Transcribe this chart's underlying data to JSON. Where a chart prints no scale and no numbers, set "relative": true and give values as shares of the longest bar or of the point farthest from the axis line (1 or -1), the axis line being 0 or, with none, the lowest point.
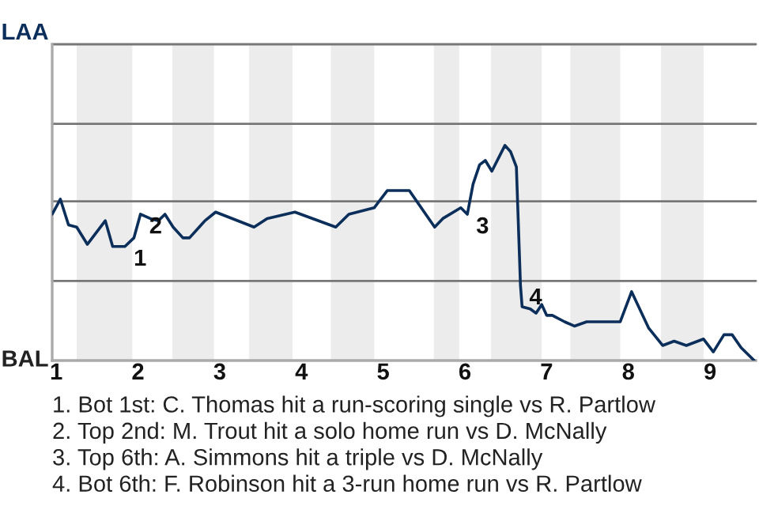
{
  "chart_data": {
    "type": "line",
    "relative": true,
    "x": [
      0.95,
      1.05,
      1.15,
      1.25,
      1.38,
      1.6,
      1.69,
      1.84,
      1.95,
      2.03,
      2.15,
      2.25,
      2.33,
      2.43,
      2.55,
      2.63,
      2.82,
      2.95,
      3.42,
      3.58,
      3.92,
      4.42,
      4.58,
      4.89,
      5.05,
      5.32,
      5.63,
      5.73,
      5.95,
      6.03,
      6.1,
      6.18,
      6.25,
      6.33,
      6.49,
      6.56,
      6.63,
      6.68,
      6.7,
      6.8,
      6.87,
      6.94,
      7.0,
      7.07,
      7.22,
      7.34,
      7.49,
      7.63,
      7.76,
      7.9,
      8.04,
      8.25,
      8.42,
      8.56,
      8.71,
      8.92,
      9.04,
      9.17,
      9.27,
      9.38,
      9.54
    ],
    "series": [
      {
        "color": "#0b2e5a",
        "values": [
          0.68,
          0.75,
          0.63,
          0.62,
          0.54,
          0.65,
          0.53,
          0.53,
          0.57,
          0.68,
          0.66,
          0.65,
          0.68,
          0.62,
          0.57,
          0.57,
          0.65,
          0.69,
          0.62,
          0.66,
          0.69,
          0.62,
          0.68,
          0.71,
          0.79,
          0.79,
          0.62,
          0.66,
          0.71,
          0.68,
          0.82,
          0.91,
          0.93,
          0.88,
          1,
          0.97,
          0.9,
          0.35,
          0.25,
          0.24,
          0.22,
          0.26,
          0.21,
          0.21,
          0.18,
          0.16,
          0.18,
          0.18,
          0.18,
          0.18,
          0.32,
          0.15,
          0.07,
          0.09,
          0.07,
          0.1,
          0.04,
          0.12,
          0.12,
          0.06,
          0
        ]
      }
    ],
    "xlim": [
      0.95,
      9.56
    ],
    "xticks": [
      1,
      2,
      3,
      4,
      5,
      6,
      7,
      8,
      9
    ],
    "marker": "none",
    "line_style": "solid",
    "ref_lines": [
      {
        "axis": "y",
        "value": 0.37,
        "color": "#777777"
      },
      {
        "axis": "y",
        "value": 0.74,
        "color": "#777777"
      },
      {
        "axis": "y",
        "value": 1.1,
        "color": "#777777"
      },
      {
        "axis": "y",
        "value": 1.47,
        "color": "#777777"
      }
    ],
    "bands": [
      {
        "axis": "x",
        "from": 1.25,
        "to": 1.93,
        "color": "#ececec"
      },
      {
        "axis": "x",
        "from": 2.42,
        "to": 2.93,
        "color": "#ececec"
      },
      {
        "axis": "x",
        "from": 3.36,
        "to": 3.89,
        "color": "#ececec"
      },
      {
        "axis": "x",
        "from": 4.36,
        "to": 4.89,
        "color": "#ececec"
      },
      {
        "axis": "x",
        "from": 5.62,
        "to": 5.93,
        "color": "#ececec"
      },
      {
        "axis": "x",
        "from": 6.32,
        "to": 6.94,
        "color": "#ececec"
      },
      {
        "axis": "x",
        "from": 7.29,
        "to": 7.9,
        "color": "#ececec"
      },
      {
        "axis": "x",
        "from": 8.4,
        "to": 8.92,
        "color": "#ececec"
      }
    ],
    "annotations": [
      "LAA",
      "BAL",
      {
        "text": "1",
        "x": 1.84,
        "y": 0.53
      },
      {
        "text": "2",
        "x": 2.03,
        "y": 0.68
      },
      {
        "text": "3",
        "x": 6.03,
        "y": 0.68
      },
      {
        "text": "4",
        "x": 6.68,
        "y": 0.35
      },
      "1. Bot 1st: C. Thomas hit a run-scoring single vs R. Partlow",
      "2. Top 2nd: M. Trout hit a solo home run vs D. McNally",
      "3. Top 6th: A. Simmons hit a triple vs D. McNally",
      "4. Bot 6th: F. Robinson hit a 3-run home run vs R. Partlow"
    ]
  }
}
